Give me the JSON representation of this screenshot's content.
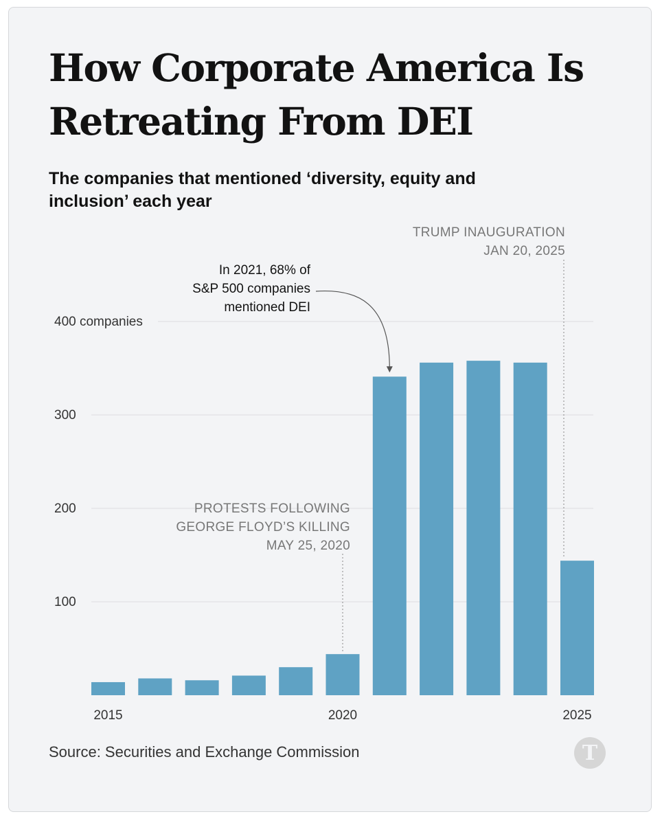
{
  "chart_data": {
    "type": "bar",
    "title": "How Corporate America Is Retreating From DEI",
    "subtitle": "The companies that mentioned ‘diversity, equity and inclusion’ each year",
    "x": [
      2015,
      2016,
      2017,
      2018,
      2019,
      2020,
      2021,
      2022,
      2023,
      2024,
      2025
    ],
    "values": [
      14,
      18,
      16,
      21,
      30,
      44,
      341,
      356,
      358,
      356,
      144
    ],
    "x_tick_labels": [
      "2015",
      "2020",
      "2025"
    ],
    "y_ticks": [
      {
        "value": 100,
        "label": "100"
      },
      {
        "value": 200,
        "label": "200"
      },
      {
        "value": 300,
        "label": "300"
      },
      {
        "value": 400,
        "label": "400 companies"
      }
    ],
    "ylim": [
      0,
      400
    ],
    "grid": true,
    "bar_color": "#5fa2c4",
    "annotations": {
      "dei_2021": {
        "x": 2021,
        "lines": [
          "In 2021, 68% of",
          "S&P 500 companies",
          "mentioned DEI"
        ]
      },
      "floyd": {
        "x": 2020,
        "lines": [
          "PROTESTS FOLLOWING",
          "GEORGE FLOYD’S KILLING",
          "MAY 25, 2020"
        ]
      },
      "trump": {
        "x": 2025,
        "lines": [
          "TRUMP INAUGURATION",
          "JAN 20, 2025"
        ]
      }
    }
  },
  "source": "Source: Securities and Exchange Commission",
  "logo": {
    "icon": "nyt-logo-icon",
    "glyph": "T"
  }
}
